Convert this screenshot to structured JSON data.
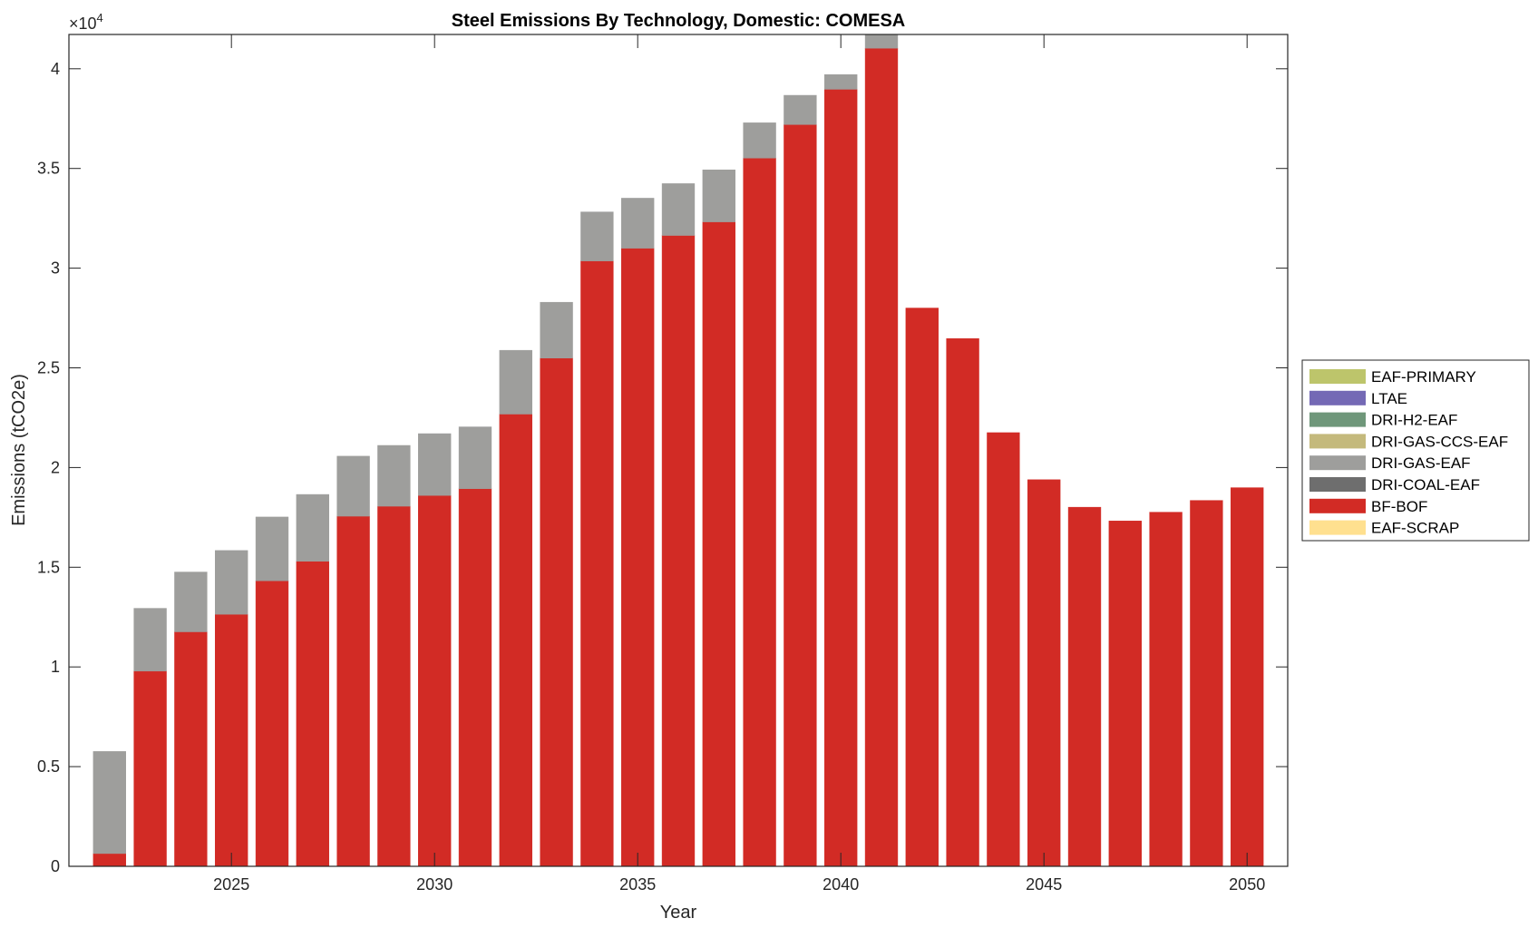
{
  "chart_data": {
    "type": "bar",
    "stacked": true,
    "title": "Steel Emissions By Technology, Domestic: COMESA",
    "xlabel": "Year",
    "ylabel": "Emissions (tCO2e)",
    "y_exponent_label": "×10",
    "y_exponent": "4",
    "xlim": [
      2021,
      2051
    ],
    "ylim": [
      0,
      41720
    ],
    "x_ticks": [
      2025,
      2030,
      2035,
      2040,
      2045,
      2050
    ],
    "y_ticks": [
      0,
      5000,
      10000,
      15000,
      20000,
      25000,
      30000,
      35000,
      40000
    ],
    "y_tick_labels": [
      "0",
      "0.5",
      "1",
      "1.5",
      "2",
      "2.5",
      "3",
      "3.5",
      "4"
    ],
    "legend_position": "outside-right",
    "categories": [
      2022,
      2023,
      2024,
      2025,
      2026,
      2027,
      2028,
      2029,
      2030,
      2031,
      2032,
      2033,
      2034,
      2035,
      2036,
      2037,
      2038,
      2039,
      2040,
      2041,
      2042,
      2043,
      2044,
      2045,
      2046,
      2047,
      2048,
      2049,
      2050
    ],
    "series": [
      {
        "name": "EAF-SCRAP",
        "color": "#FFE08F",
        "values": [
          0,
          0,
          0,
          0,
          0,
          0,
          0,
          0,
          0,
          0,
          0,
          0,
          0,
          0,
          0,
          0,
          0,
          0,
          0,
          0,
          0,
          0,
          0,
          0,
          0,
          0,
          0,
          0,
          0
        ]
      },
      {
        "name": "BF-BOF",
        "color": "#D22B25",
        "values": [
          640,
          9790,
          11760,
          12640,
          14320,
          15300,
          17560,
          18060,
          18600,
          18940,
          22680,
          25490,
          30360,
          31000,
          31640,
          32320,
          35520,
          37200,
          38970,
          41030,
          28000,
          26470,
          21750,
          19390,
          18010,
          17320,
          17760,
          18350,
          18990
        ]
      },
      {
        "name": "DRI-COAL-EAF",
        "color": "#6E6E6E",
        "values": [
          0,
          0,
          0,
          0,
          0,
          0,
          0,
          0,
          0,
          0,
          0,
          0,
          0,
          0,
          0,
          0,
          0,
          0,
          0,
          0,
          0,
          0,
          0,
          0,
          0,
          0,
          0,
          0,
          0
        ]
      },
      {
        "name": "DRI-GAS-EAF",
        "color": "#9E9E9C",
        "values": [
          5120,
          3150,
          3000,
          3200,
          3200,
          3350,
          3010,
          3050,
          3100,
          3100,
          3200,
          2800,
          2460,
          2510,
          2600,
          2610,
          1770,
          1470,
          740,
          1000,
          0,
          0,
          0,
          0,
          0,
          0,
          0,
          0,
          0
        ]
      },
      {
        "name": "DRI-GAS-CCS-EAF",
        "color": "#C4B97C",
        "values": [
          0,
          0,
          0,
          0,
          0,
          0,
          0,
          0,
          0,
          0,
          0,
          0,
          0,
          0,
          0,
          0,
          0,
          0,
          0,
          0,
          0,
          0,
          0,
          0,
          0,
          0,
          0,
          0,
          0
        ]
      },
      {
        "name": "DRI-H2-EAF",
        "color": "#6F977A",
        "values": [
          0,
          0,
          0,
          0,
          0,
          0,
          0,
          0,
          0,
          0,
          0,
          0,
          0,
          0,
          0,
          0,
          0,
          0,
          0,
          0,
          0,
          0,
          0,
          0,
          0,
          0,
          0,
          0,
          0
        ]
      },
      {
        "name": "LTAE",
        "color": "#7469B5",
        "values": [
          0,
          0,
          0,
          0,
          0,
          0,
          0,
          0,
          0,
          0,
          0,
          0,
          0,
          0,
          0,
          0,
          0,
          0,
          0,
          0,
          0,
          0,
          0,
          0,
          0,
          0,
          0,
          0,
          0
        ]
      },
      {
        "name": "EAF-PRIMARY",
        "color": "#BDC56B",
        "values": [
          0,
          0,
          0,
          0,
          0,
          0,
          0,
          0,
          0,
          0,
          0,
          0,
          0,
          0,
          0,
          0,
          0,
          0,
          0,
          0,
          0,
          0,
          0,
          0,
          0,
          0,
          0,
          0,
          0
        ]
      }
    ],
    "legend_order": [
      "EAF-PRIMARY",
      "LTAE",
      "DRI-H2-EAF",
      "DRI-GAS-CCS-EAF",
      "DRI-GAS-EAF",
      "DRI-COAL-EAF",
      "BF-BOF",
      "EAF-SCRAP"
    ]
  }
}
